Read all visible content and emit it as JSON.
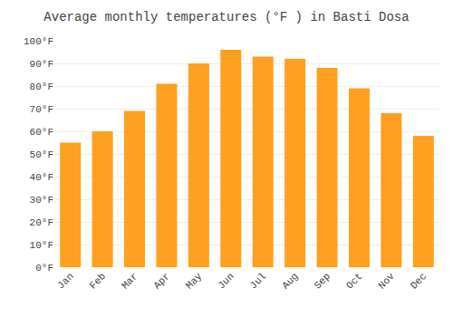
{
  "chart_data": {
    "type": "bar",
    "title": "Average monthly temperatures (°F ) in Basti Dosa",
    "categories": [
      "Jan",
      "Feb",
      "Mar",
      "Apr",
      "May",
      "Jun",
      "Jul",
      "Aug",
      "Sep",
      "Oct",
      "Nov",
      "Dec"
    ],
    "values": [
      55,
      60,
      69,
      81,
      90,
      96,
      93,
      92,
      88,
      79,
      68,
      58
    ],
    "color": "#FFA020",
    "ylim": [
      0,
      100
    ],
    "yticks": [
      {
        "value": 0,
        "label": "0°F"
      },
      {
        "value": 10,
        "label": "10°F"
      },
      {
        "value": 20,
        "label": "20°F"
      },
      {
        "value": 30,
        "label": "30°F"
      },
      {
        "value": 40,
        "label": "40°F"
      },
      {
        "value": 50,
        "label": "50°F"
      },
      {
        "value": 60,
        "label": "60°F"
      },
      {
        "value": 70,
        "label": "70°F"
      },
      {
        "value": 80,
        "label": "80°F"
      },
      {
        "value": 90,
        "label": "90°F"
      },
      {
        "value": 100,
        "label": "100°F"
      }
    ],
    "grid": true
  }
}
